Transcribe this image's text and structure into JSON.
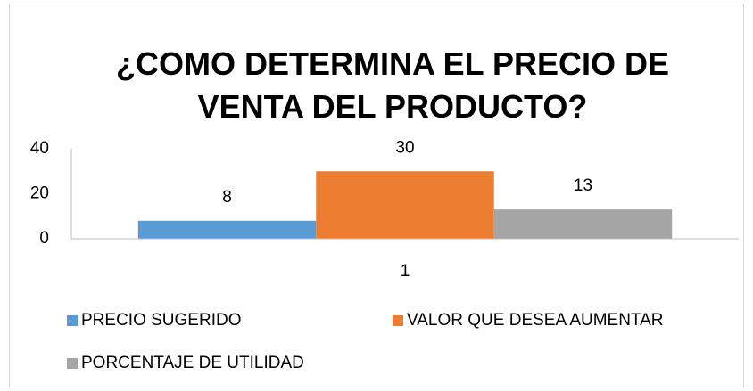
{
  "chart_data": {
    "type": "bar",
    "title": "¿COMO DETERMINA EL PRECIO DE VENTA DEL PRODUCTO?",
    "categories": [
      "1"
    ],
    "series": [
      {
        "name": "PRECIO SUGERIDO",
        "color": "#5b9bd5",
        "values": [
          8
        ]
      },
      {
        "name": "VALOR QUE DESEA AUMENTAR",
        "color": "#ed7d31",
        "values": [
          30
        ]
      },
      {
        "name": "PORCENTAJE DE UTILIDAD",
        "color": "#a5a5a5",
        "values": [
          13
        ]
      }
    ],
    "ylim": [
      0,
      40
    ],
    "yticks": [
      0,
      20,
      40
    ],
    "grid": false,
    "legend": "bottom"
  }
}
